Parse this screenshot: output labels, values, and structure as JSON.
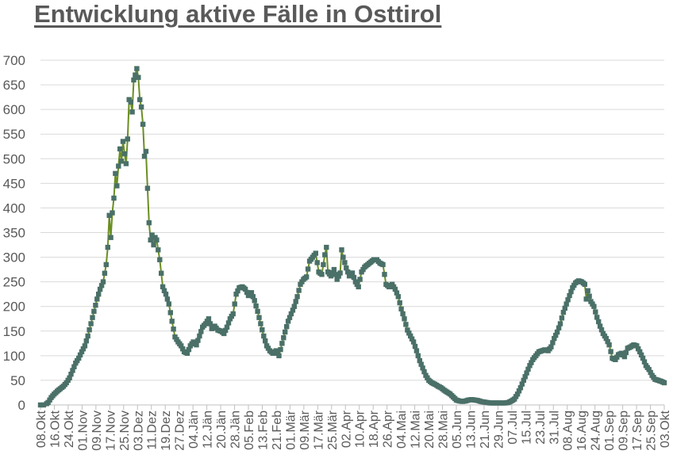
{
  "title": "Entwicklung aktive Fälle in Osttirol",
  "colors": {
    "title": "#595959",
    "axis_text": "#595959",
    "gridline": "#d9d9d9",
    "line": "#6b8e23",
    "marker": "#4a7068"
  },
  "chart_data": {
    "type": "line",
    "title": "Entwicklung aktive Fälle in Osttirol",
    "xlabel": "",
    "ylabel": "",
    "ylim": [
      0,
      700
    ],
    "yticks": [
      0,
      50,
      100,
      150,
      200,
      250,
      300,
      350,
      400,
      450,
      500,
      550,
      600,
      650,
      700
    ],
    "grid": true,
    "legend": "none",
    "x_start": "08.Okt",
    "x_end": "03.Okt",
    "x_step_days": 1,
    "xtick_labels": [
      "08.Okt",
      "16.Okt",
      "24.Okt",
      "01.Nov",
      "09.Nov",
      "17.Nov",
      "25.Nov",
      "03.Dez",
      "11.Dez",
      "19.Dez",
      "27.Dez",
      "04.Jän",
      "12.Jän",
      "20.Jän",
      "28.Jän",
      "05.Feb",
      "13.Feb",
      "21.Feb",
      "01.Mär",
      "09.Mär",
      "17.Mär",
      "25.Mär",
      "02.Apr",
      "10.Apr",
      "18.Apr",
      "26.Apr",
      "04.Mai",
      "12.Mai",
      "20.Mai",
      "28.Mai",
      "05.Jun",
      "13.Jun",
      "21.Jun",
      "29.Jun",
      "07.Jul",
      "15.Jul",
      "23.Jul",
      "31.Jul",
      "08.Aug",
      "16.Aug",
      "24.Aug",
      "01.Sep",
      "09.Sep",
      "17.Sep",
      "25.Sep",
      "03.Okt"
    ],
    "series": [
      {
        "name": "Aktive Fälle",
        "keypoints_day_value": [
          [
            0,
            0
          ],
          [
            3,
            0
          ],
          [
            5,
            5
          ],
          [
            7,
            15
          ],
          [
            9,
            22
          ],
          [
            11,
            28
          ],
          [
            13,
            33
          ],
          [
            15,
            38
          ],
          [
            17,
            45
          ],
          [
            19,
            55
          ],
          [
            21,
            70
          ],
          [
            23,
            85
          ],
          [
            25,
            95
          ],
          [
            27,
            108
          ],
          [
            29,
            120
          ],
          [
            31,
            140
          ],
          [
            33,
            165
          ],
          [
            35,
            190
          ],
          [
            37,
            215
          ],
          [
            39,
            235
          ],
          [
            41,
            250
          ],
          [
            43,
            285
          ],
          [
            44,
            320
          ],
          [
            45,
            385
          ],
          [
            46,
            340
          ],
          [
            47,
            390
          ],
          [
            48,
            420
          ],
          [
            49,
            470
          ],
          [
            50,
            445
          ],
          [
            51,
            485
          ],
          [
            52,
            520
          ],
          [
            53,
            495
          ],
          [
            54,
            535
          ],
          [
            55,
            510
          ],
          [
            56,
            490
          ],
          [
            57,
            540
          ],
          [
            58,
            620
          ],
          [
            59,
            615
          ],
          [
            60,
            595
          ],
          [
            61,
            660
          ],
          [
            62,
            670
          ],
          [
            63,
            683
          ],
          [
            64,
            665
          ],
          [
            65,
            620
          ],
          [
            66,
            605
          ],
          [
            67,
            570
          ],
          [
            68,
            505
          ],
          [
            69,
            515
          ],
          [
            70,
            440
          ],
          [
            71,
            370
          ],
          [
            72,
            335
          ],
          [
            73,
            345
          ],
          [
            74,
            325
          ],
          [
            75,
            340
          ],
          [
            76,
            335
          ],
          [
            78,
            295
          ],
          [
            80,
            240
          ],
          [
            81,
            232
          ],
          [
            82,
            225
          ],
          [
            84,
            205
          ],
          [
            86,
            170
          ],
          [
            88,
            138
          ],
          [
            90,
            128
          ],
          [
            92,
            120
          ],
          [
            94,
            108
          ],
          [
            96,
            105
          ],
          [
            98,
            120
          ],
          [
            100,
            128
          ],
          [
            102,
            122
          ],
          [
            104,
            140
          ],
          [
            106,
            158
          ],
          [
            108,
            165
          ],
          [
            110,
            175
          ],
          [
            112,
            155
          ],
          [
            114,
            160
          ],
          [
            116,
            152
          ],
          [
            118,
            150
          ],
          [
            120,
            145
          ],
          [
            122,
            158
          ],
          [
            124,
            175
          ],
          [
            126,
            185
          ],
          [
            128,
            225
          ],
          [
            130,
            238
          ],
          [
            132,
            240
          ],
          [
            134,
            235
          ],
          [
            136,
            222
          ],
          [
            138,
            228
          ],
          [
            140,
            212
          ],
          [
            142,
            190
          ],
          [
            144,
            165
          ],
          [
            146,
            140
          ],
          [
            148,
            120
          ],
          [
            150,
            110
          ],
          [
            152,
            105
          ],
          [
            154,
            110
          ],
          [
            156,
            100
          ],
          [
            158,
            125
          ],
          [
            160,
            148
          ],
          [
            162,
            170
          ],
          [
            164,
            185
          ],
          [
            166,
            200
          ],
          [
            168,
            220
          ],
          [
            170,
            245
          ],
          [
            172,
            255
          ],
          [
            174,
            260
          ],
          [
            176,
            292
          ],
          [
            178,
            300
          ],
          [
            180,
            308
          ],
          [
            182,
            270
          ],
          [
            184,
            265
          ],
          [
            186,
            305
          ],
          [
            187,
            320
          ],
          [
            188,
            270
          ],
          [
            190,
            262
          ],
          [
            192,
            275
          ],
          [
            194,
            255
          ],
          [
            196,
            268
          ],
          [
            197,
            315
          ],
          [
            198,
            300
          ],
          [
            200,
            278
          ],
          [
            202,
            262
          ],
          [
            204,
            268
          ],
          [
            206,
            250
          ],
          [
            208,
            240
          ],
          [
            210,
            270
          ],
          [
            212,
            280
          ],
          [
            214,
            285
          ],
          [
            216,
            290
          ],
          [
            218,
            295
          ],
          [
            220,
            295
          ],
          [
            222,
            288
          ],
          [
            224,
            285
          ],
          [
            226,
            245
          ],
          [
            228,
            240
          ],
          [
            230,
            245
          ],
          [
            232,
            235
          ],
          [
            234,
            220
          ],
          [
            236,
            195
          ],
          [
            238,
            175
          ],
          [
            240,
            152
          ],
          [
            242,
            140
          ],
          [
            244,
            128
          ],
          [
            246,
            110
          ],
          [
            248,
            90
          ],
          [
            250,
            75
          ],
          [
            252,
            60
          ],
          [
            254,
            50
          ],
          [
            256,
            45
          ],
          [
            258,
            42
          ],
          [
            260,
            38
          ],
          [
            262,
            35
          ],
          [
            264,
            30
          ],
          [
            266,
            26
          ],
          [
            268,
            22
          ],
          [
            270,
            16
          ],
          [
            272,
            10
          ],
          [
            274,
            8
          ],
          [
            276,
            7
          ],
          [
            278,
            8
          ],
          [
            280,
            10
          ],
          [
            282,
            11
          ],
          [
            284,
            10
          ],
          [
            286,
            9
          ],
          [
            288,
            7
          ],
          [
            290,
            6
          ],
          [
            292,
            5
          ],
          [
            294,
            4
          ],
          [
            296,
            4
          ],
          [
            298,
            4
          ],
          [
            300,
            4
          ],
          [
            302,
            4
          ],
          [
            304,
            4
          ],
          [
            306,
            5
          ],
          [
            308,
            8
          ],
          [
            310,
            12
          ],
          [
            312,
            22
          ],
          [
            314,
            35
          ],
          [
            316,
            50
          ],
          [
            318,
            65
          ],
          [
            320,
            80
          ],
          [
            322,
            92
          ],
          [
            324,
            100
          ],
          [
            326,
            108
          ],
          [
            328,
            110
          ],
          [
            330,
            112
          ],
          [
            332,
            110
          ],
          [
            334,
            118
          ],
          [
            336,
            135
          ],
          [
            338,
            148
          ],
          [
            340,
            165
          ],
          [
            342,
            188
          ],
          [
            344,
            205
          ],
          [
            346,
            222
          ],
          [
            348,
            238
          ],
          [
            350,
            248
          ],
          [
            352,
            252
          ],
          [
            354,
            250
          ],
          [
            356,
            245
          ],
          [
            357,
            215
          ],
          [
            358,
            232
          ],
          [
            360,
            210
          ],
          [
            362,
            200
          ],
          [
            364,
            178
          ],
          [
            366,
            160
          ],
          [
            368,
            145
          ],
          [
            370,
            135
          ],
          [
            372,
            122
          ],
          [
            374,
            95
          ],
          [
            376,
            92
          ],
          [
            378,
            102
          ],
          [
            380,
            105
          ],
          [
            382,
            98
          ],
          [
            384,
            115
          ],
          [
            386,
            118
          ],
          [
            388,
            122
          ],
          [
            390,
            120
          ],
          [
            392,
            108
          ],
          [
            394,
            95
          ],
          [
            396,
            80
          ],
          [
            398,
            72
          ],
          [
            400,
            60
          ],
          [
            402,
            52
          ],
          [
            404,
            50
          ],
          [
            406,
            48
          ],
          [
            408,
            45
          ]
        ]
      }
    ]
  }
}
